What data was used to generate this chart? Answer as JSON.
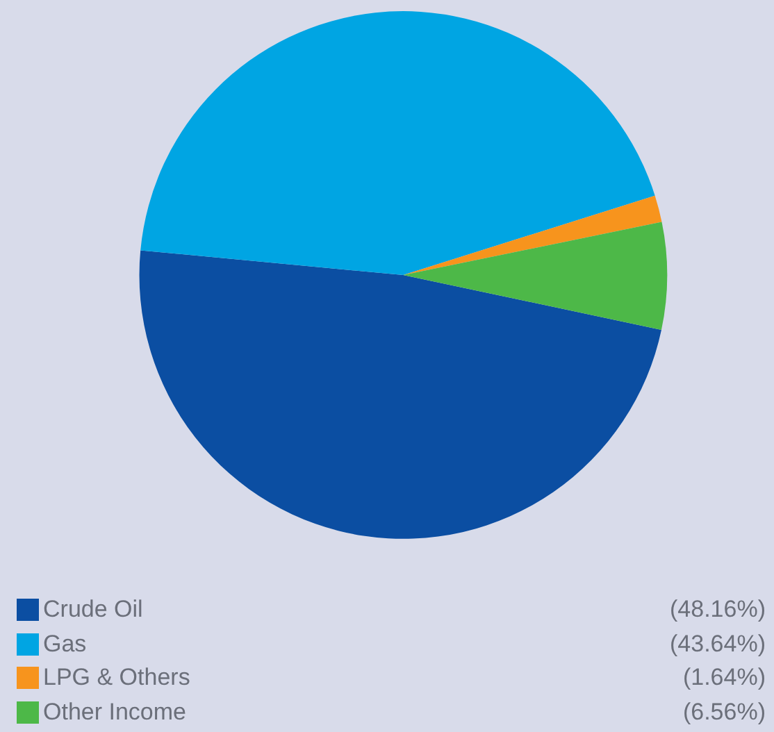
{
  "chart_data": {
    "type": "pie",
    "categories": [
      "Crude Oil",
      "Gas",
      "LPG & Others",
      "Other Income"
    ],
    "values": [
      48.16,
      43.64,
      1.64,
      6.56
    ],
    "colors": [
      "#0b4ea2",
      "#00a5e3",
      "#f7941d",
      "#4db848"
    ],
    "value_labels": [
      "(48.16%)",
      "(43.64%)",
      "(1.64%)",
      "(6.56%)"
    ],
    "legend": "bottom"
  }
}
